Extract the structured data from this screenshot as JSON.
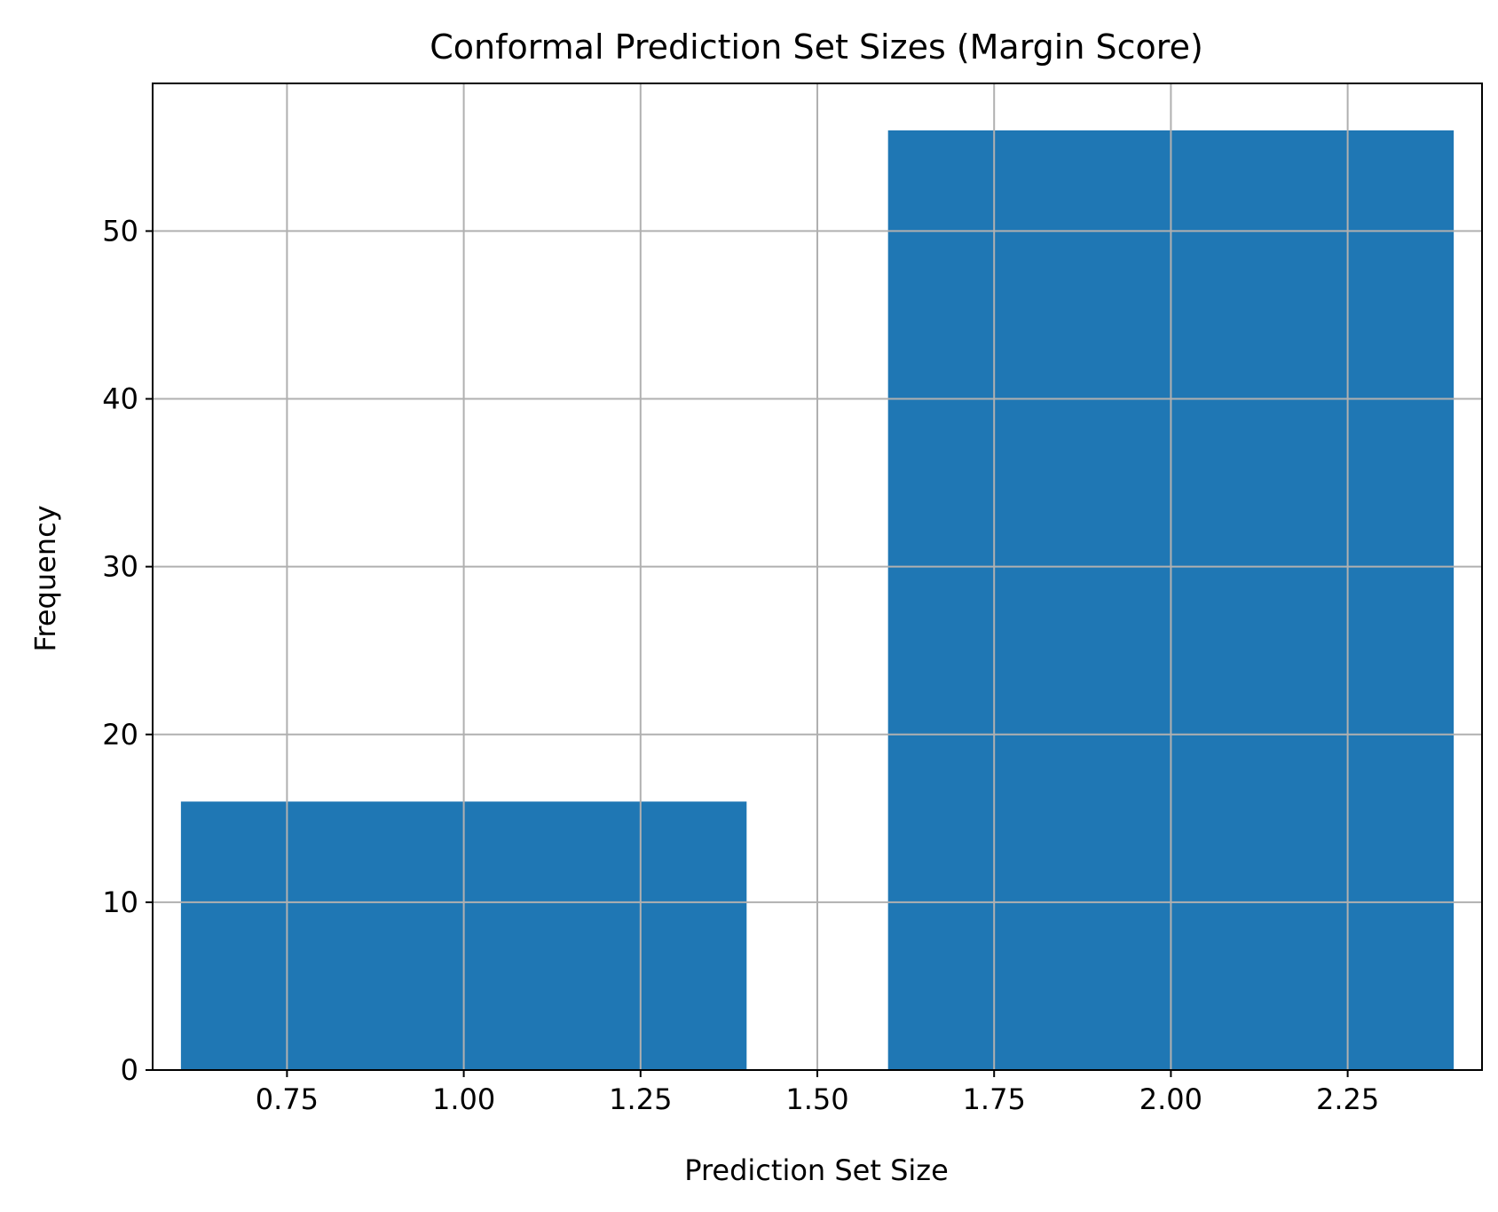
{
  "chart_data": {
    "type": "bar",
    "title": "Conformal Prediction Set Sizes (Margin Score)",
    "xlabel": "Prediction Set Size",
    "ylabel": "Frequency",
    "bars": [
      {
        "x": 1,
        "width": 0.8,
        "value": 16
      },
      {
        "x": 2,
        "width": 0.8,
        "value": 56
      }
    ],
    "xlim": [
      0.56,
      2.44
    ],
    "ylim": [
      0,
      58.8
    ],
    "xticks": [
      0.75,
      1.0,
      1.25,
      1.5,
      1.75,
      2.0,
      2.25
    ],
    "xtick_labels": [
      "0.75",
      "1.00",
      "1.25",
      "1.50",
      "1.75",
      "2.00",
      "2.25"
    ],
    "yticks": [
      0,
      10,
      20,
      30,
      40,
      50
    ],
    "ytick_labels": [
      "0",
      "10",
      "20",
      "30",
      "40",
      "50"
    ],
    "grid": true,
    "bar_color": "#1f77b4",
    "grid_color": "#b0b0b0"
  }
}
